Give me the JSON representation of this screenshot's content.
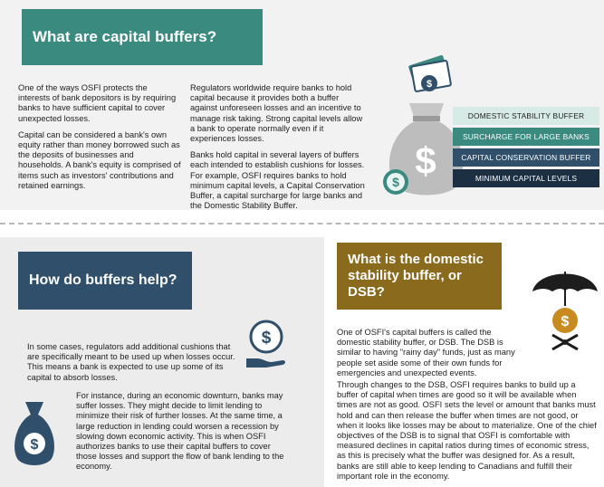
{
  "top": {
    "title": "What are capital buffers?",
    "col1": [
      "One of the ways OSFI protects the interests of bank depositors is by requiring banks to have sufficient capital to cover unexpected losses.",
      "Capital can be considered a bank's own equity rather than money borrowed such as the deposits of businesses and households. A bank's equity is comprised of items such as investors' contributions and retained earnings."
    ],
    "col2": [
      "Regulators worldwide require banks to hold capital because it provides both a buffer against unforeseen losses and an incentive to manage risk taking. Strong capital levels allow a bank to operate normally even if it experiences losses.",
      "Banks hold capital in several layers of buffers each intended to establish cushions for losses. For example, OSFI requires banks to hold minimum capital levels, a Capital Conservation Buffer, a capital surcharge for large banks and the Domestic Stability Buffer."
    ],
    "buffer_layers": [
      {
        "label": "DOMESTIC STABILITY BUFFER",
        "color": "#d7eae6",
        "text_color": "#1f1f1f"
      },
      {
        "label": "SURCHARGE FOR LARGE BANKS",
        "color": "#3a8a80",
        "text_color": "#ffffff"
      },
      {
        "label": "CAPITAL CONSERVATION BUFFER",
        "color": "#2f4f6a",
        "text_color": "#ffffff"
      },
      {
        "label": "MINIMUM CAPITAL LEVELS",
        "color": "#1d2f42",
        "text_color": "#ffffff"
      }
    ]
  },
  "left": {
    "title": "How do buffers help?",
    "paragraphs": [
      "In some cases, regulators add additional cushions that are specifically meant to be used up when losses occur. This means a bank is expected to use up some of its capital to absorb losses.",
      "For instance, during an economic downturn, banks may suffer losses. They might decide to limit lending to minimize their risk of further losses. At the same time, a large reduction in lending could worsen a recession by slowing down economic activity. This is when OSFI authorizes banks to use their capital buffers to cover those losses and support the flow of bank lending to the economy."
    ]
  },
  "right": {
    "title": "What is the domestic stability buffer, or DSB?",
    "paragraphs": [
      "One of OSFI's capital buffers is called the domestic stability buffer, or DSB. The DSB is similar to having \"rainy day\" funds, just as many people set aside some of their own funds for emergencies and unexpected events.",
      "Through changes to the DSB, OSFI requires banks to build up a buffer of capital when times are good so it will be available when times are not as good. OSFI sets the level or amount that banks must hold and can then release the buffer when times are not good, or when it looks like losses may be about to materialize.  One of the chief objectives of the DSB is to signal that OSFI is comfortable with measured declines in capital ratios during times of economic stress, as this is precisely what the buffer was designed for.  As a result, banks are still able to keep lending to Canadians and fulfill their important role in the economy."
    ]
  },
  "icons": {
    "money_bag": "money-bag-icon",
    "coin": "dollar-coin-icon",
    "hand_coin": "hand-holding-coin-icon",
    "umbrella": "umbrella-icon"
  }
}
